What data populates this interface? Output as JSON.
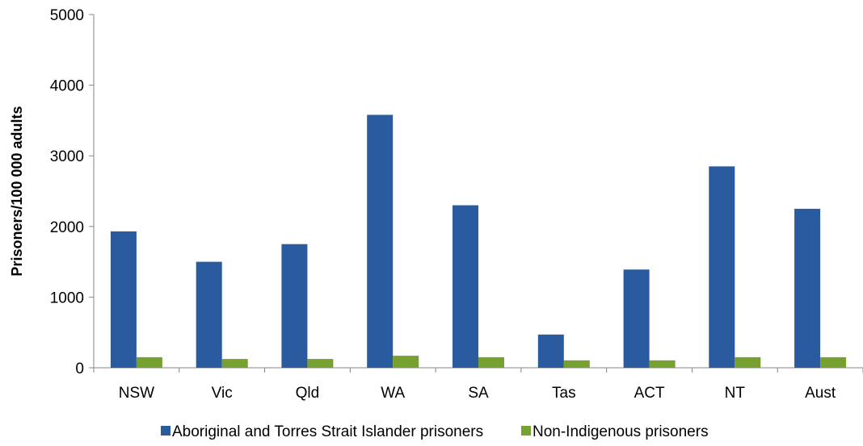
{
  "chart_data": {
    "type": "bar",
    "categories": [
      "NSW",
      "Vic",
      "Qld",
      "WA",
      "SA",
      "Tas",
      "ACT",
      "NT",
      "Aust"
    ],
    "series": [
      {
        "name": "Aboriginal and Torres Strait Islander prisoners",
        "color": "#2a5b9e",
        "values": [
          1930,
          1500,
          1750,
          3580,
          2300,
          470,
          1390,
          2850,
          2250
        ]
      },
      {
        "name": "Non-Indigenous prisoners",
        "color": "#77a12e",
        "values": [
          150,
          125,
          125,
          170,
          150,
          105,
          105,
          150,
          150
        ]
      }
    ],
    "ylabel": "Prisoners/100 000 adults",
    "xlabel": "",
    "ylim": [
      0,
      5000
    ],
    "yticks": [
      0,
      1000,
      2000,
      3000,
      4000,
      5000
    ],
    "grid": false,
    "legend_position": "bottom"
  }
}
